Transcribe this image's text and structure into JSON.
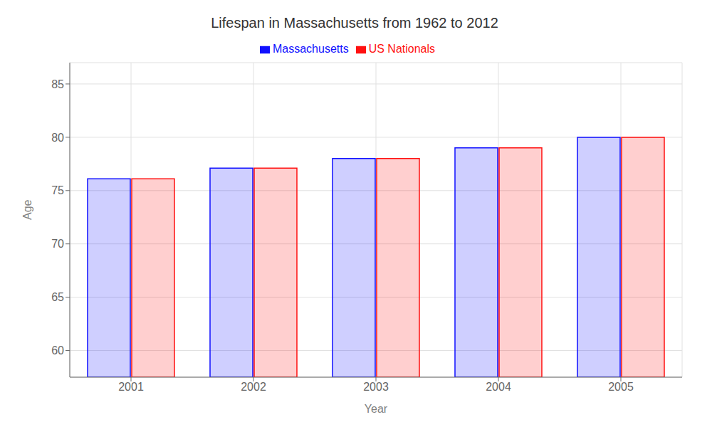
{
  "chart_data": {
    "type": "bar",
    "title": "Lifespan in Massachusetts from 1962 to 2012",
    "x_label": "Year",
    "y_label": "Age",
    "categories": [
      "2001",
      "2002",
      "2003",
      "2004",
      "2005"
    ],
    "series": [
      {
        "name": "Massachusetts",
        "color": "#1111ff",
        "values": [
          76.1,
          77.1,
          78.0,
          79.0,
          80.0
        ]
      },
      {
        "name": "US Nationals",
        "color": "#ff1111",
        "values": [
          76.1,
          77.1,
          78.0,
          79.0,
          80.0
        ]
      }
    ],
    "ylim": [
      57.5,
      87
    ],
    "yticks": [
      60,
      65,
      70,
      75,
      80,
      85
    ],
    "grid": true,
    "legend": "top"
  }
}
